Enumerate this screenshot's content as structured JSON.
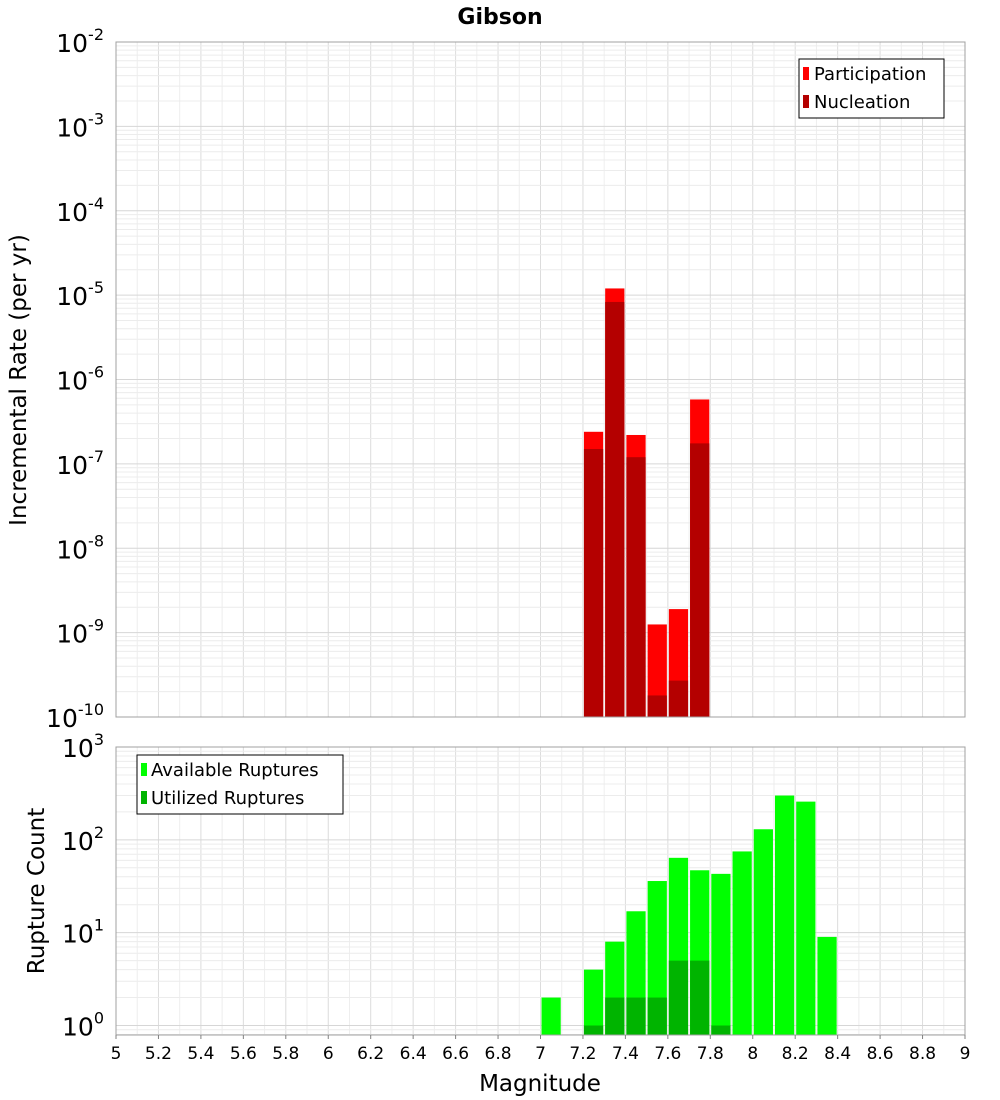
{
  "chart_data": [
    {
      "type": "bar",
      "title": "Gibson",
      "ylabel": "Incremental Rate (per yr)",
      "xlabel": "",
      "xlim": [
        5,
        9
      ],
      "ylim": [
        1e-10,
        0.01
      ],
      "y_scale": "log",
      "y_ticks": [
        {
          "base": "10",
          "exp": "-2"
        },
        {
          "base": "10",
          "exp": "-3"
        },
        {
          "base": "10",
          "exp": "-4"
        },
        {
          "base": "10",
          "exp": "-5"
        },
        {
          "base": "10",
          "exp": "-6"
        },
        {
          "base": "10",
          "exp": "-7"
        },
        {
          "base": "10",
          "exp": "-8"
        },
        {
          "base": "10",
          "exp": "-9"
        },
        {
          "base": "10",
          "exp": "-10"
        }
      ],
      "grid": true,
      "legend_position": "top-right",
      "series": [
        {
          "name": "Participation",
          "color": "#ff0000",
          "x": [
            7.25,
            7.35,
            7.45,
            7.55,
            7.65,
            7.75
          ],
          "values": [
            2.4e-07,
            1.2e-05,
            2.2e-07,
            1.25e-09,
            1.9e-09,
            5.8e-07
          ]
        },
        {
          "name": "Nucleation",
          "color": "#b40000",
          "x": [
            7.25,
            7.35,
            7.45,
            7.55,
            7.65,
            7.75
          ],
          "values": [
            1.5e-07,
            8.3e-06,
            1.2e-07,
            1.8e-10,
            2.7e-10,
            1.75e-07
          ]
        }
      ]
    },
    {
      "type": "bar",
      "title": "",
      "ylabel": "Rupture Count",
      "xlabel": "Magnitude",
      "xlim": [
        5,
        9
      ],
      "ylim": [
        0.79,
        1000
      ],
      "y_scale": "log",
      "y_ticks": [
        {
          "base": "10",
          "exp": "3"
        },
        {
          "base": "10",
          "exp": "2"
        },
        {
          "base": "10",
          "exp": "1"
        },
        {
          "base": "10",
          "exp": "0"
        }
      ],
      "x_tick_labels": [
        "5",
        "5.2",
        "5.4",
        "5.6",
        "5.8",
        "6",
        "6.2",
        "6.4",
        "6.6",
        "6.8",
        "7",
        "7.2",
        "7.4",
        "7.6",
        "7.8",
        "8",
        "8.2",
        "8.4",
        "8.6",
        "8.8",
        "9"
      ],
      "grid": true,
      "legend_position": "top-left",
      "series": [
        {
          "name": "Available Ruptures",
          "color": "#00ff00",
          "x": [
            7.05,
            7.25,
            7.35,
            7.45,
            7.55,
            7.65,
            7.75,
            7.85,
            7.95,
            8.05,
            8.15,
            8.25,
            8.35
          ],
          "values": [
            2,
            4,
            8,
            17,
            36,
            64,
            47,
            43,
            75,
            130,
            300,
            258,
            9
          ]
        },
        {
          "name": "Utilized Ruptures",
          "color": "#00b400",
          "x": [
            7.25,
            7.35,
            7.45,
            7.55,
            7.65,
            7.75,
            7.85
          ],
          "values": [
            1,
            2,
            2,
            2,
            5,
            5,
            1
          ]
        }
      ]
    }
  ]
}
